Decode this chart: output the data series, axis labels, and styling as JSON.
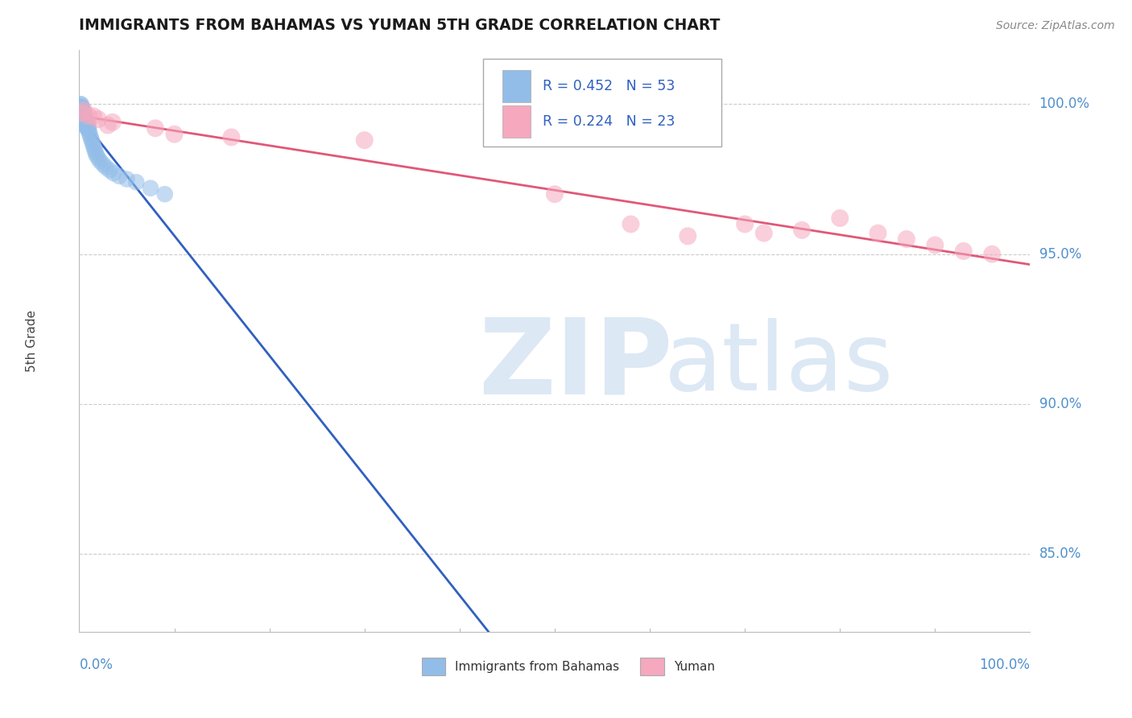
{
  "title": "IMMIGRANTS FROM BAHAMAS VS YUMAN 5TH GRADE CORRELATION CHART",
  "source": "Source: ZipAtlas.com",
  "ylabel": "5th Grade",
  "y_tick_labels": [
    "85.0%",
    "90.0%",
    "95.0%",
    "100.0%"
  ],
  "y_tick_values": [
    0.85,
    0.9,
    0.95,
    1.0
  ],
  "xlim": [
    0.0,
    1.0
  ],
  "ylim": [
    0.824,
    1.018
  ],
  "blue_R": 0.452,
  "blue_N": 53,
  "pink_R": 0.224,
  "pink_N": 23,
  "blue_color": "#92bde8",
  "pink_color": "#f5a8be",
  "blue_line_color": "#3060c0",
  "pink_line_color": "#e05878",
  "watermark_color": "#dde8f5",
  "grid_color": "#cccccc",
  "right_label_color": "#5090cc",
  "title_color": "#1a1a1a",
  "blue_x": [
    0.001,
    0.001,
    0.002,
    0.002,
    0.002,
    0.003,
    0.003,
    0.003,
    0.004,
    0.004,
    0.004,
    0.004,
    0.005,
    0.005,
    0.005,
    0.006,
    0.006,
    0.006,
    0.007,
    0.007,
    0.007,
    0.008,
    0.008,
    0.008,
    0.009,
    0.009,
    0.01,
    0.01,
    0.011,
    0.012,
    0.013,
    0.014,
    0.015,
    0.016,
    0.017,
    0.018,
    0.02,
    0.022,
    0.025,
    0.028,
    0.032,
    0.036,
    0.042,
    0.05,
    0.06,
    0.075,
    0.09,
    0.001,
    0.002,
    0.003,
    0.004,
    0.005,
    0.006
  ],
  "blue_y": [
    1.0,
    0.999,
    1.0,
    0.999,
    0.998,
    0.999,
    0.998,
    0.997,
    0.998,
    0.997,
    0.997,
    0.996,
    0.997,
    0.996,
    0.995,
    0.996,
    0.995,
    0.994,
    0.995,
    0.994,
    0.993,
    0.994,
    0.993,
    0.992,
    0.993,
    0.992,
    0.992,
    0.991,
    0.99,
    0.989,
    0.988,
    0.987,
    0.986,
    0.985,
    0.984,
    0.983,
    0.982,
    0.981,
    0.98,
    0.979,
    0.978,
    0.977,
    0.976,
    0.975,
    0.974,
    0.972,
    0.97,
    0.998,
    0.997,
    0.996,
    0.995,
    0.994,
    0.993
  ],
  "pink_x": [
    0.003,
    0.01,
    0.02,
    0.035,
    0.08,
    0.16,
    0.58,
    0.64,
    0.7,
    0.72,
    0.76,
    0.8,
    0.84,
    0.87,
    0.9,
    0.93,
    0.96,
    0.005,
    0.015,
    0.03,
    0.1,
    0.3,
    0.5
  ],
  "pink_y": [
    0.997,
    0.996,
    0.995,
    0.994,
    0.992,
    0.989,
    0.96,
    0.956,
    0.96,
    0.957,
    0.958,
    0.962,
    0.957,
    0.955,
    0.953,
    0.951,
    0.95,
    0.998,
    0.996,
    0.993,
    0.99,
    0.988,
    0.97
  ]
}
